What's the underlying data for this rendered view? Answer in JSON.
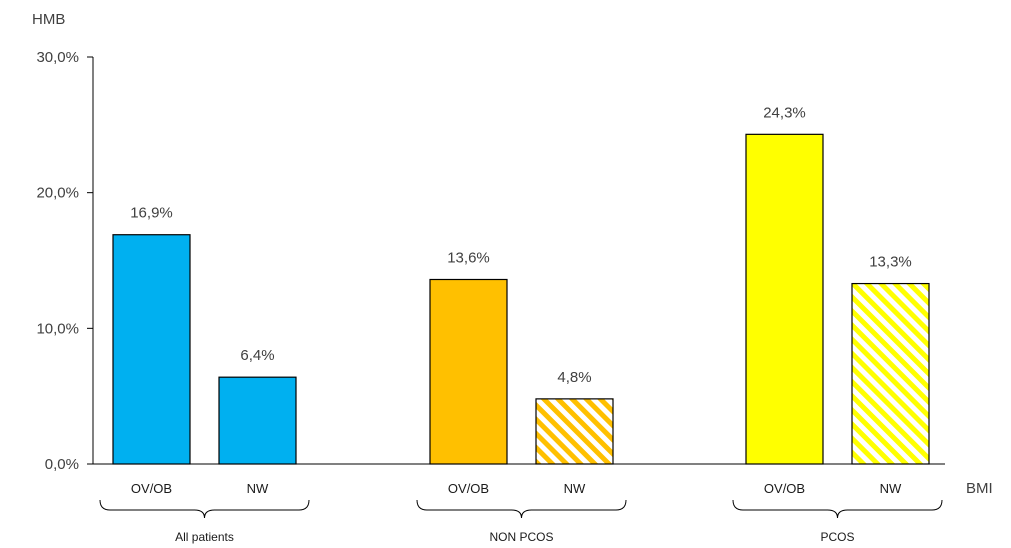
{
  "chart_data": {
    "type": "bar",
    "ylabel": "HMB",
    "xlabel": "BMI",
    "ylim": [
      0,
      30
    ],
    "yticks": [
      "0,0%",
      "10,0%",
      "20,0%",
      "30,0%"
    ],
    "grid": false,
    "groups": [
      {
        "name": "All patients",
        "color": "#00B0F0",
        "bars": [
          {
            "category": "OV/OB",
            "value": 16.9,
            "label": "16,9%",
            "pattern": "solid"
          },
          {
            "category": "NW",
            "value": 6.4,
            "label": "6,4%",
            "pattern": "solid"
          }
        ]
      },
      {
        "name": "NON PCOS",
        "color": "#FFC000",
        "bars": [
          {
            "category": "OV/OB",
            "value": 13.6,
            "label": "13,6%",
            "pattern": "solid"
          },
          {
            "category": "NW",
            "value": 4.8,
            "label": "4,8%",
            "pattern": "hatched"
          }
        ]
      },
      {
        "name": "PCOS",
        "color": "#FFFF00",
        "bars": [
          {
            "category": "OV/OB",
            "value": 24.3,
            "label": "24,3%",
            "pattern": "solid"
          },
          {
            "category": "NW",
            "value": 13.3,
            "label": "13,3%",
            "pattern": "hatched"
          }
        ]
      }
    ]
  }
}
